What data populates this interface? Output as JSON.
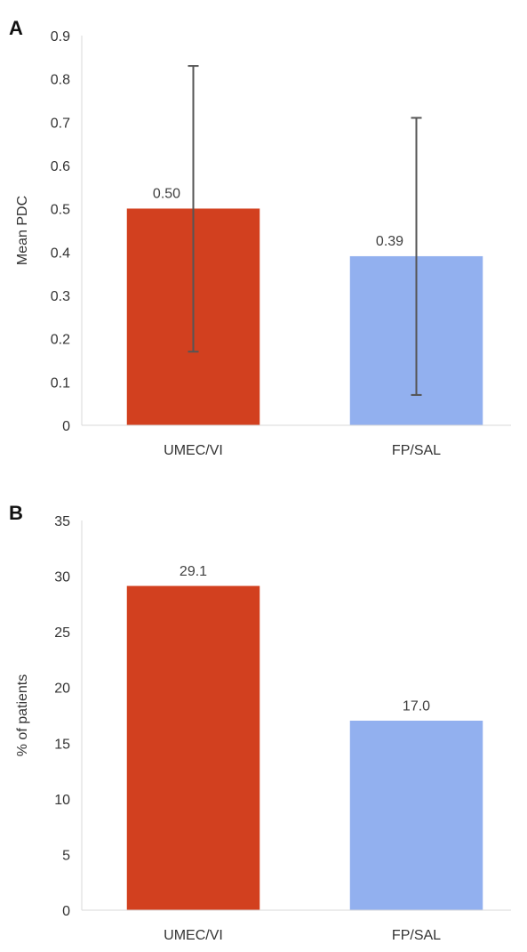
{
  "chart_data": [
    {
      "panel_label": "A",
      "type": "bar",
      "categories": [
        "UMEC/VI",
        "FP/SAL"
      ],
      "values": [
        0.5,
        0.39
      ],
      "value_labels": [
        "0.50",
        "0.39"
      ],
      "error_bars": [
        {
          "low": 0.17,
          "high": 0.83
        },
        {
          "low": 0.07,
          "high": 0.71
        }
      ],
      "ylabel": "Mean PDC",
      "xlabel": "",
      "ylim": [
        0,
        0.9
      ],
      "yticks": [
        "0",
        "0.1",
        "0.2",
        "0.3",
        "0.4",
        "0.5",
        "0.6",
        "0.7",
        "0.8",
        "0.9"
      ],
      "bar_colors": [
        "#d2401f",
        "#92b0ef"
      ],
      "grid": false
    },
    {
      "panel_label": "B",
      "type": "bar",
      "categories": [
        "UMEC/VI",
        "FP/SAL"
      ],
      "values": [
        29.1,
        17.0
      ],
      "value_labels": [
        "29.1",
        "17.0"
      ],
      "ylabel": "% of patients",
      "xlabel": "",
      "ylim": [
        0,
        35
      ],
      "yticks": [
        "0",
        "5",
        "10",
        "15",
        "20",
        "25",
        "30",
        "35"
      ],
      "bar_colors": [
        "#d2401f",
        "#92b0ef"
      ],
      "grid": false
    }
  ]
}
